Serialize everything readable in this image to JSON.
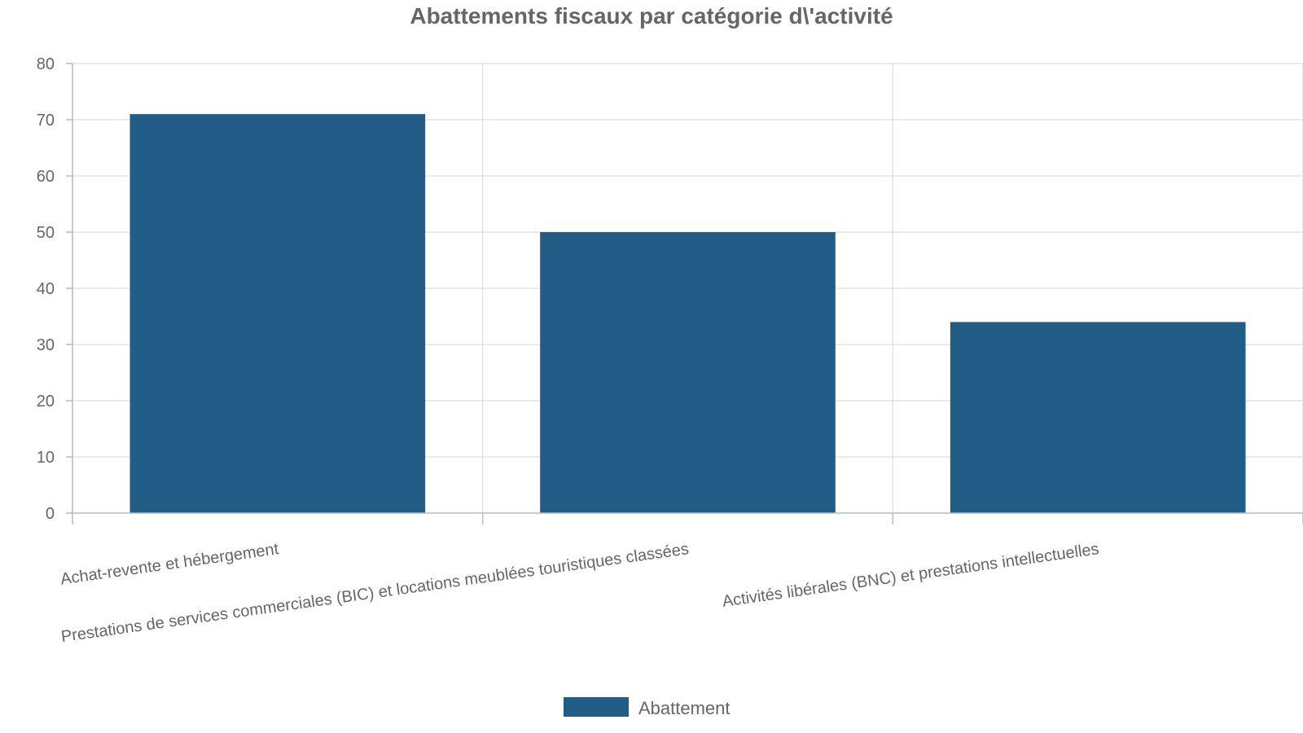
{
  "chart_data": {
    "type": "bar",
    "title": "Abattements fiscaux par catégorie d\\'activité",
    "categories": [
      "Achat-revente et hébergement",
      "Prestations de services commerciales (BIC) et locations meublées touristiques classées",
      "Activités libérales (BNC) et prestations intellectuelles"
    ],
    "series": [
      {
        "name": "Abattement",
        "values": [
          71,
          50,
          34
        ],
        "color": "#215d87"
      }
    ],
    "xlabel": "",
    "ylabel": "",
    "ylim": [
      0,
      80
    ],
    "yticks": [
      "0",
      "10",
      "20",
      "30",
      "40",
      "50",
      "60",
      "70",
      "80"
    ],
    "grid": true,
    "legend_position": "bottom"
  }
}
